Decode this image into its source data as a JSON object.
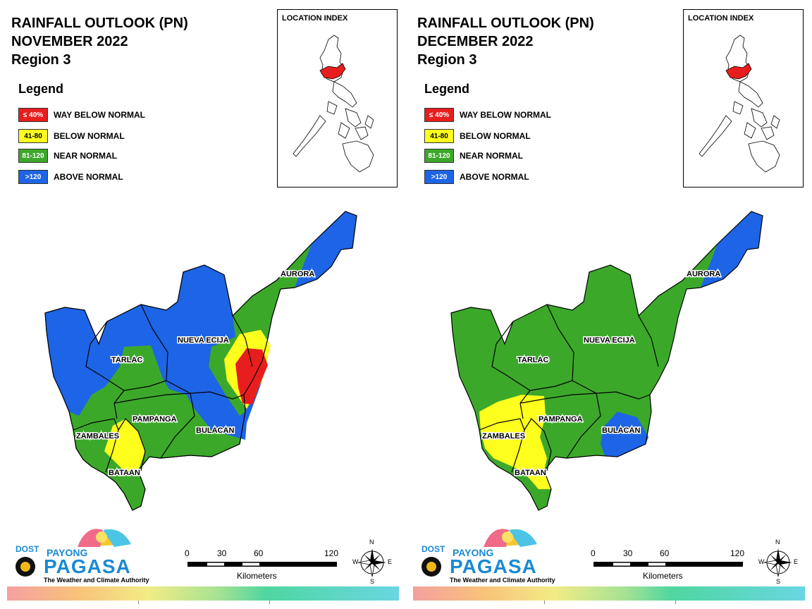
{
  "panels": [
    {
      "title_line1": "RAINFALL OUTLOOK (PN)",
      "title_line2": "NOVEMBER 2022",
      "title_line3": "Region 3"
    },
    {
      "title_line1": "RAINFALL OUTLOOK (PN)",
      "title_line2": "DECEMBER 2022",
      "title_line3": "Region 3"
    }
  ],
  "legend": {
    "title": "Legend",
    "items": [
      {
        "range": "≤ 40%",
        "label": "WAY BELOW NORMAL",
        "color": "#e81e1e",
        "text_color": "#ffffff"
      },
      {
        "range": "41-80",
        "label": "BELOW NORMAL",
        "color": "#ffff1e",
        "text_color": "#000000"
      },
      {
        "range": "81-120",
        "label": "NEAR NORMAL",
        "color": "#3ca82a",
        "text_color": "#ffffff"
      },
      {
        "range": ">120",
        "label": "ABOVE NORMAL",
        "color": "#1e64e6",
        "text_color": "#ffffff"
      }
    ]
  },
  "location_index": {
    "title": "LOCATION INDEX",
    "highlight_color": "#e81e1e"
  },
  "provinces": {
    "aurora": "AURORA",
    "nueva_ecija": "NUEVA ECIJA",
    "tarlac": "TARLAC",
    "pampanga": "PAMPANGA",
    "zambales": "ZAMBALES",
    "bulacan": "BULACAN",
    "bataan": "BATAAN"
  },
  "scale": {
    "ticks": [
      "0",
      "30",
      "60",
      "120"
    ],
    "unit": "Kilometers"
  },
  "compass": {
    "n": "N",
    "s": "S",
    "e": "E",
    "w": "W"
  },
  "logo": {
    "dost": "DOST",
    "payong": "PAYONG",
    "pagasa": "PAGASA",
    "tagline": "The Weather and Climate Authority"
  },
  "colors": {
    "way_below": "#e81e1e",
    "below": "#ffff1e",
    "near": "#3ca82a",
    "above": "#1e64e6"
  }
}
